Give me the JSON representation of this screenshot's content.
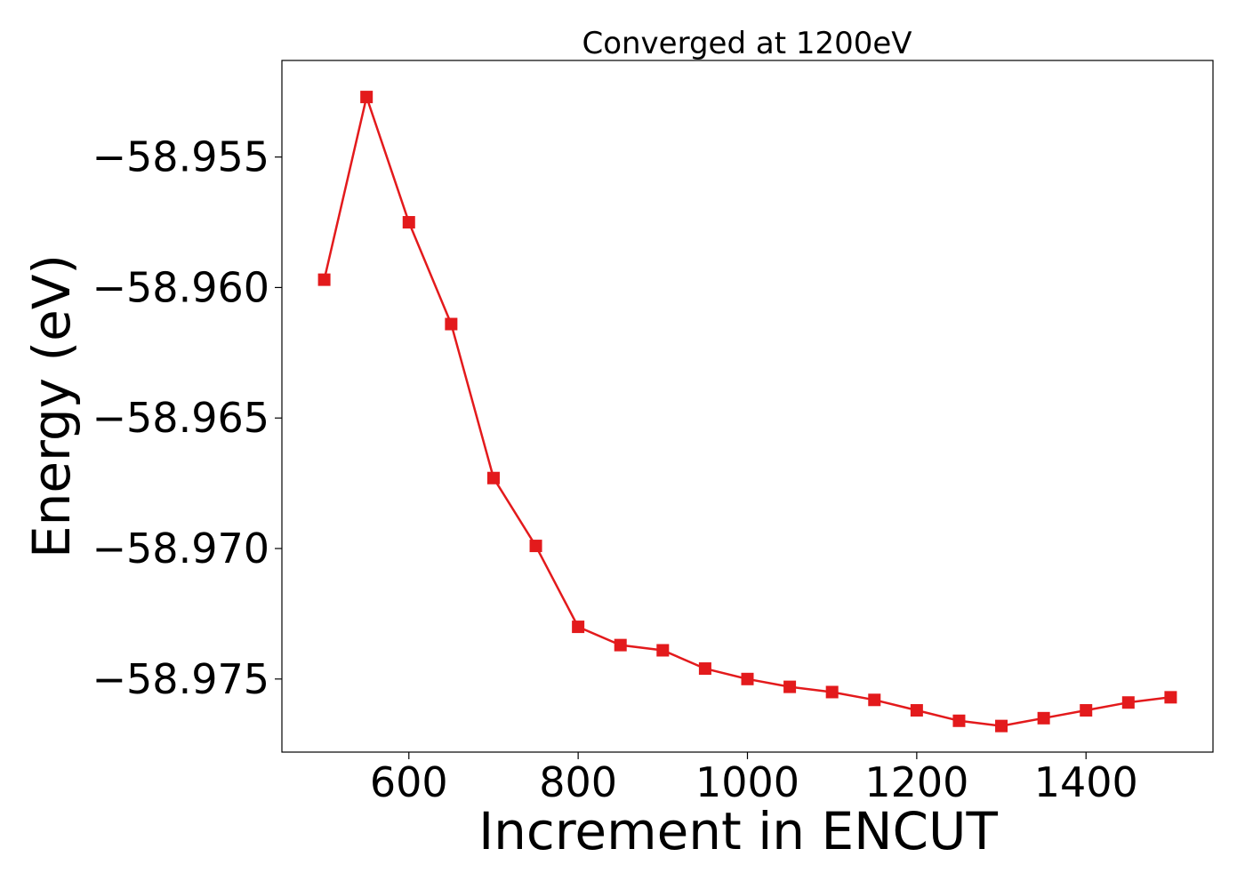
{
  "chart_data": {
    "type": "line",
    "title": "Converged at 1200eV",
    "xlabel": "Increment in ENCUT",
    "ylabel": "Energy (eV)",
    "xlim": [
      450,
      1550
    ],
    "ylim": [
      -58.9778,
      -58.9513
    ],
    "xticks": [
      600,
      800,
      1000,
      1200,
      1400
    ],
    "xtick_labels": [
      "600",
      "800",
      "1000",
      "1200",
      "1400"
    ],
    "yticks": [
      -58.955,
      -58.96,
      -58.965,
      -58.97,
      -58.975
    ],
    "ytick_labels": [
      "−58.955",
      "−58.960",
      "−58.965",
      "−58.970",
      "−58.975"
    ],
    "grid": false,
    "series": [
      {
        "color": "#e31a1c",
        "marker": "square",
        "x": [
          500,
          550,
          600,
          650,
          700,
          750,
          800,
          850,
          900,
          950,
          1000,
          1050,
          1100,
          1150,
          1200,
          1250,
          1300,
          1350,
          1400,
          1450,
          1500
        ],
        "y": [
          -58.9597,
          -58.9527,
          -58.9575,
          -58.9614,
          -58.9673,
          -58.9699,
          -58.973,
          -58.9737,
          -58.9739,
          -58.9746,
          -58.975,
          -58.9753,
          -58.9755,
          -58.9758,
          -58.9762,
          -58.9766,
          -58.9768,
          -58.9765,
          -58.9762,
          -58.9759,
          -58.9757
        ]
      }
    ]
  }
}
